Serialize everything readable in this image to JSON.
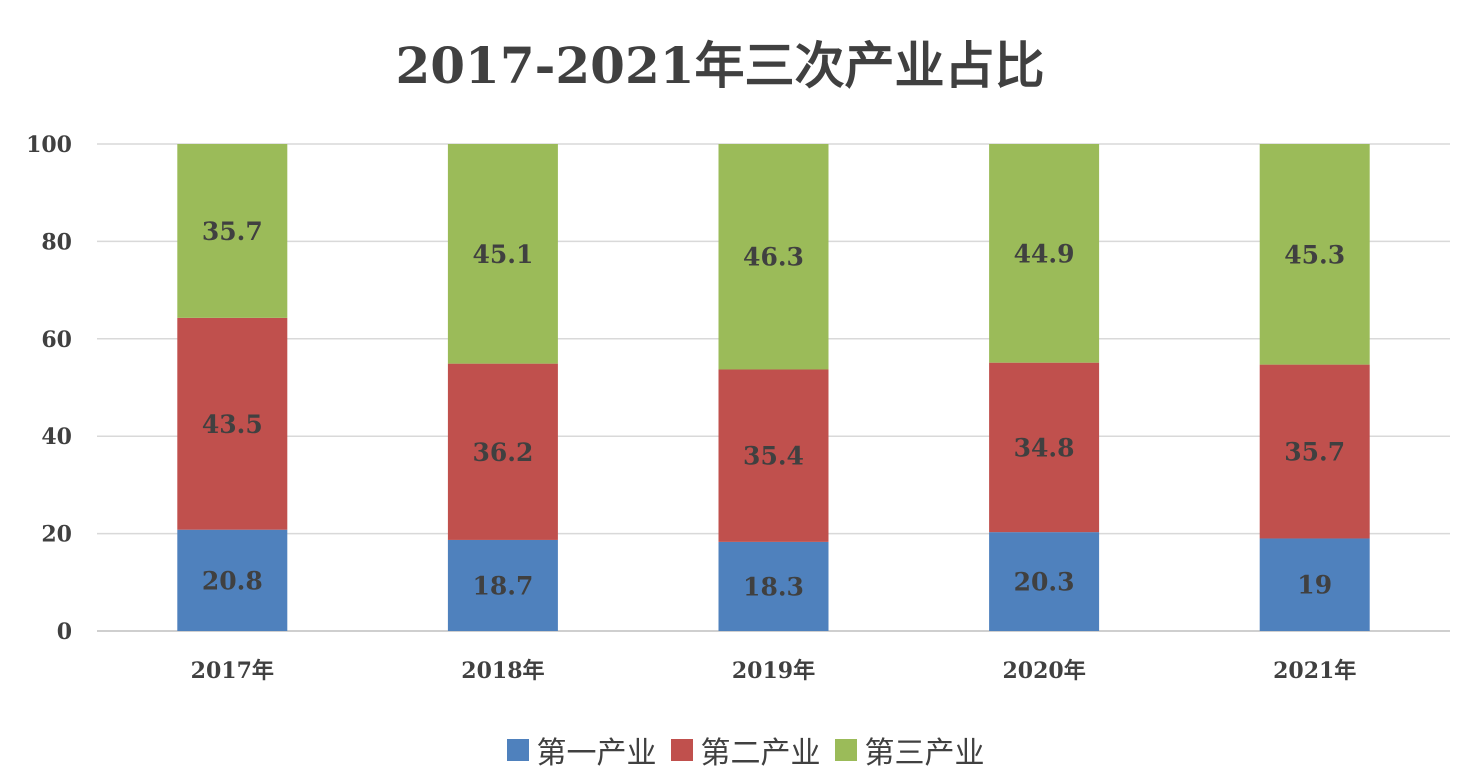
{
  "chart_data": {
    "type": "bar",
    "stacked": true,
    "title": "2017-2021年三次产业占比",
    "categories": [
      "2017年",
      "2018年",
      "2019年",
      "2020年",
      "2021年"
    ],
    "series": [
      {
        "name": "第一产业",
        "color": "#4f81bd",
        "values": [
          20.8,
          18.7,
          18.3,
          20.3,
          19
        ],
        "labels": [
          "20.8",
          "18.7",
          "18.3",
          "20.3",
          "19"
        ]
      },
      {
        "name": "第二产业",
        "color": "#c0504d",
        "values": [
          43.5,
          36.2,
          35.4,
          34.8,
          35.7
        ],
        "labels": [
          "43.5",
          "36.2",
          "35.4",
          "34.8",
          "35.7"
        ]
      },
      {
        "name": "第三产业",
        "color": "#9bbb59",
        "values": [
          35.7,
          45.1,
          46.3,
          44.9,
          45.3
        ],
        "labels": [
          "35.7",
          "45.1",
          "46.3",
          "44.9",
          "45.3"
        ]
      }
    ],
    "ylim": [
      0,
      100
    ],
    "yticks": [
      "0",
      "20",
      "40",
      "60",
      "80",
      "100"
    ],
    "xlabel": "",
    "ylabel": "",
    "grid": true,
    "legend_position": "bottom"
  }
}
